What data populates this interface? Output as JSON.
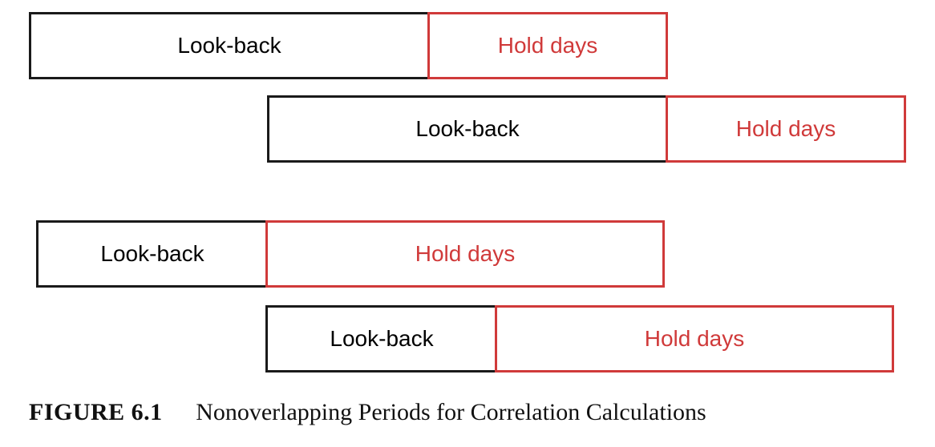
{
  "diagram": {
    "rows": [
      {
        "lookback_label": "Look-back",
        "hold_label": "Hold days"
      },
      {
        "lookback_label": "Look-back",
        "hold_label": "Hold days"
      },
      {
        "lookback_label": "Look-back",
        "hold_label": "Hold days"
      },
      {
        "lookback_label": "Look-back",
        "hold_label": "Hold days"
      }
    ],
    "colors": {
      "lookback_border": "#1a1a1a",
      "hold_color": "#d03a3a"
    }
  },
  "caption": {
    "label": "FIGURE 6.1",
    "title": "Nonoverlapping Periods for Correlation Calculations"
  }
}
